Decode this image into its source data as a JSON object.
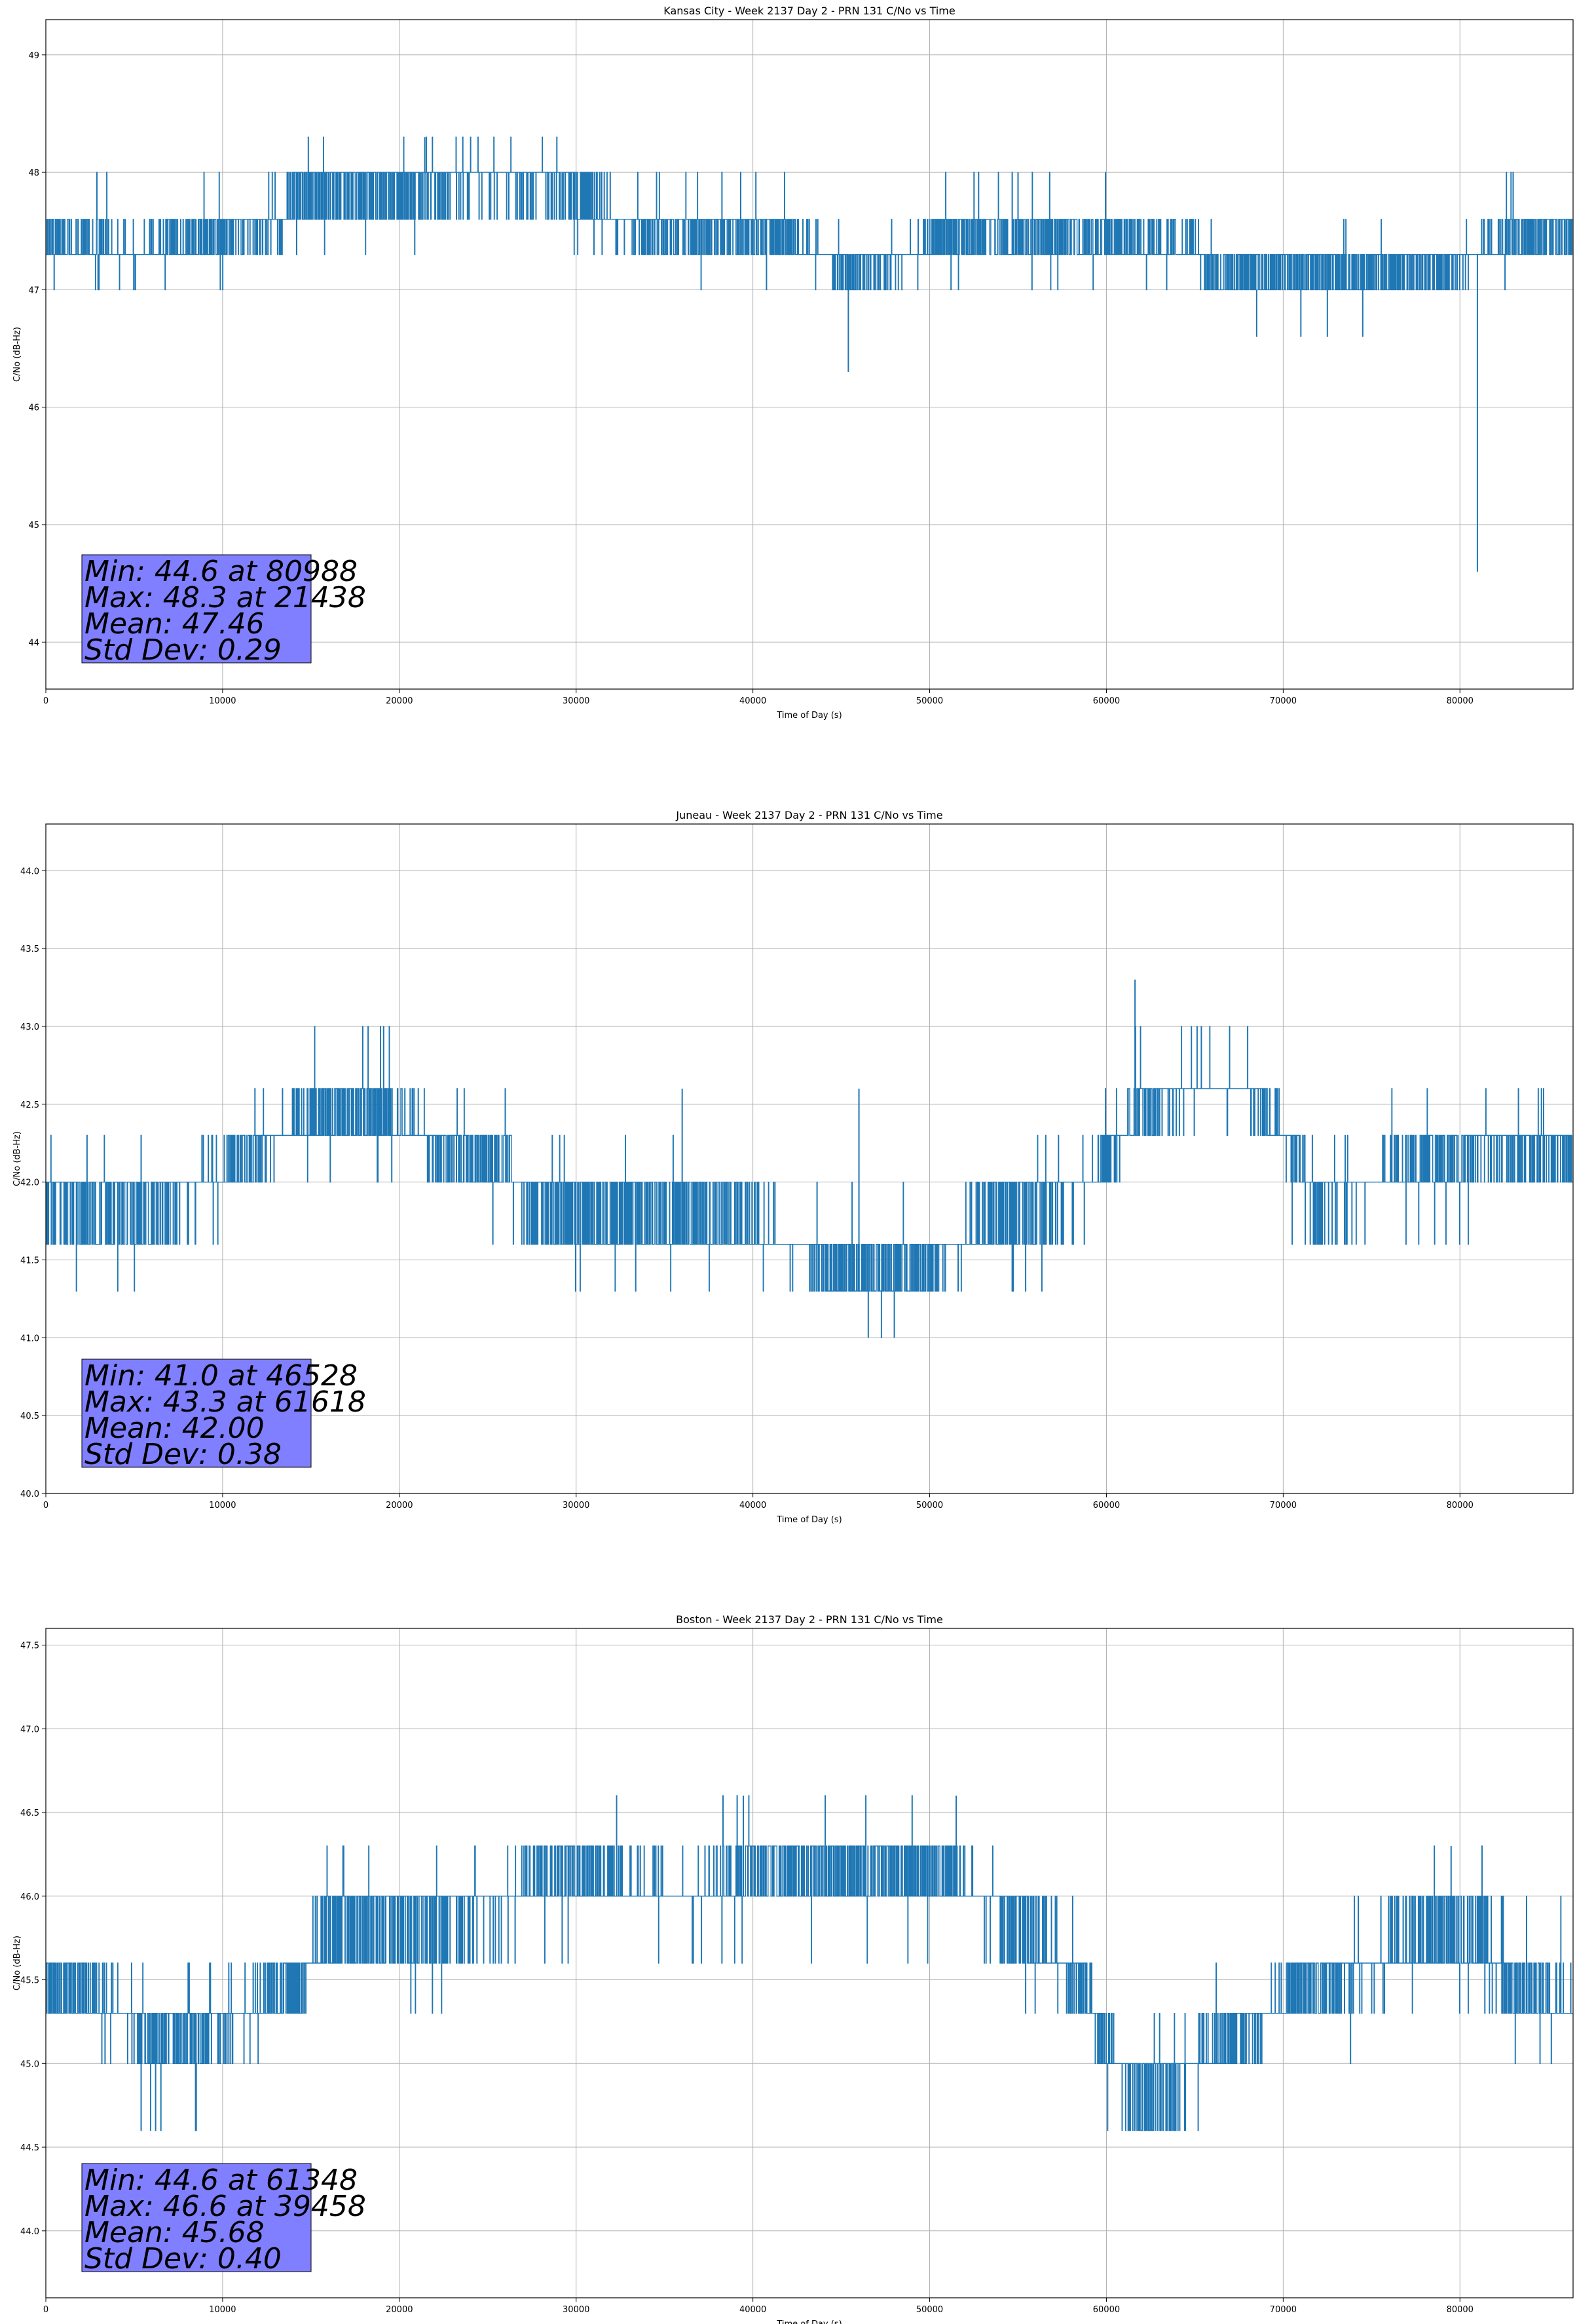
{
  "chart_data": [
    {
      "type": "line",
      "title": "Kansas City - Week 2137 Day 2 - PRN 131 C/No vs Time",
      "xlabel": "Time of Day (s)",
      "ylabel": "C/No (dB-Hz)",
      "xlim": [
        0,
        86400
      ],
      "ylim": [
        43.6,
        49.3
      ],
      "xticks": [
        0,
        10000,
        20000,
        30000,
        40000,
        50000,
        60000,
        70000,
        80000
      ],
      "yticks": [
        44,
        45,
        46,
        47,
        48,
        49
      ],
      "ytick_labels": [
        "44",
        "45",
        "46",
        "47",
        "48",
        "49"
      ],
      "grid": true,
      "series_color": "#1f77b4",
      "stats": {
        "min": "Min: 44.6 at 80988",
        "max": "Max: 48.3 at 21438",
        "mean": "Mean: 47.46",
        "std": "Std Dev: 0.29"
      },
      "stats_box_color": "#7f7fff",
      "quant_levels": [
        47.0,
        47.3,
        47.6,
        48.0,
        48.3
      ],
      "series": [
        {
          "x": [
            0,
            2000,
            5000,
            10000,
            13500,
            14000,
            17000,
            20000,
            24000,
            28000,
            30000,
            32000,
            35000,
            38000,
            42000,
            45000,
            48000,
            51000,
            55000,
            60000,
            65000,
            66000,
            70000,
            75000,
            79000,
            81000,
            83000,
            86400
          ],
          "y": [
            47.45,
            47.4,
            47.3,
            47.45,
            47.55,
            47.8,
            47.85,
            47.85,
            47.95,
            47.95,
            47.8,
            47.6,
            47.5,
            47.5,
            47.45,
            47.2,
            47.25,
            47.45,
            47.45,
            47.4,
            47.35,
            47.15,
            47.15,
            47.15,
            47.2,
            47.3,
            47.45,
            47.5
          ],
          "spikes": [
            {
              "x": 45400,
              "y": 46.3
            },
            {
              "x": 80988,
              "y": 44.6
            },
            {
              "x": 68500,
              "y": 46.6
            },
            {
              "x": 71000,
              "y": 46.6
            },
            {
              "x": 72500,
              "y": 46.6
            },
            {
              "x": 74500,
              "y": 46.6
            },
            {
              "x": 21438,
              "y": 48.3
            },
            {
              "x": 55000,
              "y": 48.0
            }
          ]
        }
      ]
    },
    {
      "type": "line",
      "title": "Juneau - Week 2137 Day 2 - PRN 131 C/No vs Time",
      "xlabel": "Time of Day (s)",
      "ylabel": "C/No (dB-Hz)",
      "xlim": [
        0,
        86400
      ],
      "ylim": [
        40.0,
        44.3
      ],
      "xticks": [
        0,
        10000,
        20000,
        30000,
        40000,
        50000,
        60000,
        70000,
        80000
      ],
      "yticks": [
        40.0,
        40.5,
        41.0,
        41.5,
        42.0,
        42.5,
        43.0,
        43.5,
        44.0
      ],
      "ytick_labels": [
        "40.0",
        "40.5",
        "41.0",
        "41.5",
        "42.0",
        "42.5",
        "43.0",
        "43.5",
        "44.0"
      ],
      "grid": true,
      "series_color": "#1f77b4",
      "stats": {
        "min": "Min: 41.0 at 46528",
        "max": "Max: 43.3 at 61618",
        "mean": "Mean: 42.00",
        "std": "Std Dev: 0.38"
      },
      "stats_box_color": "#7f7fff",
      "quant_levels": [
        41.0,
        41.3,
        41.6,
        42.0,
        42.3,
        42.6,
        43.0,
        43.3
      ],
      "series": [
        {
          "x": [
            0,
            3000,
            6000,
            8000,
            11000,
            14000,
            17000,
            20000,
            23000,
            26000,
            28000,
            32000,
            36000,
            40000,
            43000,
            46000,
            49000,
            52000,
            55000,
            58000,
            60000,
            62000,
            65000,
            68000,
            70000,
            72000,
            75000,
            78000,
            81000,
            84000,
            86400
          ],
          "y": [
            41.9,
            41.8,
            41.8,
            41.95,
            42.15,
            42.35,
            42.45,
            42.4,
            42.15,
            42.1,
            41.85,
            41.75,
            41.75,
            41.7,
            41.55,
            41.4,
            41.45,
            41.6,
            41.85,
            41.95,
            42.15,
            42.5,
            42.6,
            42.6,
            42.3,
            41.9,
            42.0,
            42.15,
            42.25,
            42.25,
            42.2
          ],
          "spikes": [
            {
              "x": 46528,
              "y": 41.0
            },
            {
              "x": 48000,
              "y": 41.0
            },
            {
              "x": 61618,
              "y": 43.3
            },
            {
              "x": 36000,
              "y": 42.6
            },
            {
              "x": 46000,
              "y": 42.6
            }
          ]
        }
      ]
    },
    {
      "type": "line",
      "title": "Boston - Week 2137 Day 2 - PRN 131 C/No vs Time",
      "xlabel": "Time of Day (s)",
      "ylabel": "C/No (dB-Hz)",
      "xlim": [
        0,
        86400
      ],
      "ylim": [
        43.6,
        47.6
      ],
      "xticks": [
        0,
        10000,
        20000,
        30000,
        40000,
        50000,
        60000,
        70000,
        80000
      ],
      "yticks": [
        44.0,
        44.5,
        45.0,
        45.5,
        46.0,
        46.5,
        47.0,
        47.5
      ],
      "ytick_labels": [
        "44.0",
        "44.5",
        "45.0",
        "45.5",
        "46.0",
        "46.5",
        "47.0",
        "47.5"
      ],
      "grid": true,
      "series_color": "#1f77b4",
      "stats": {
        "min": "Min: 44.6 at 61348",
        "max": "Max: 46.6 at 39458",
        "mean": "Mean: 45.68",
        "std": "Std Dev: 0.40"
      },
      "stats_box_color": "#7f7fff",
      "quant_levels": [
        44.6,
        45.0,
        45.3,
        45.6,
        46.0,
        46.3,
        46.6
      ],
      "series": [
        {
          "x": [
            0,
            3000,
            6000,
            9000,
            12000,
            14500,
            16000,
            20000,
            25000,
            30000,
            33000,
            37000,
            40000,
            44000,
            48000,
            52000,
            55000,
            58500,
            60000,
            62000,
            64000,
            67000,
            70000,
            73000,
            76000,
            79000,
            81500,
            83000,
            86400
          ],
          "y": [
            45.45,
            45.4,
            45.15,
            45.2,
            45.35,
            45.5,
            45.8,
            45.85,
            45.95,
            46.15,
            46.05,
            46.0,
            46.15,
            46.15,
            46.15,
            46.05,
            45.85,
            45.5,
            45.1,
            44.85,
            44.95,
            45.1,
            45.4,
            45.5,
            45.65,
            45.8,
            45.7,
            45.4,
            45.35
          ],
          "spikes": [
            {
              "x": 39458,
              "y": 46.6
            },
            {
              "x": 51500,
              "y": 46.6
            },
            {
              "x": 79500,
              "y": 46.3
            },
            {
              "x": 61348,
              "y": 44.6
            }
          ]
        }
      ]
    }
  ]
}
